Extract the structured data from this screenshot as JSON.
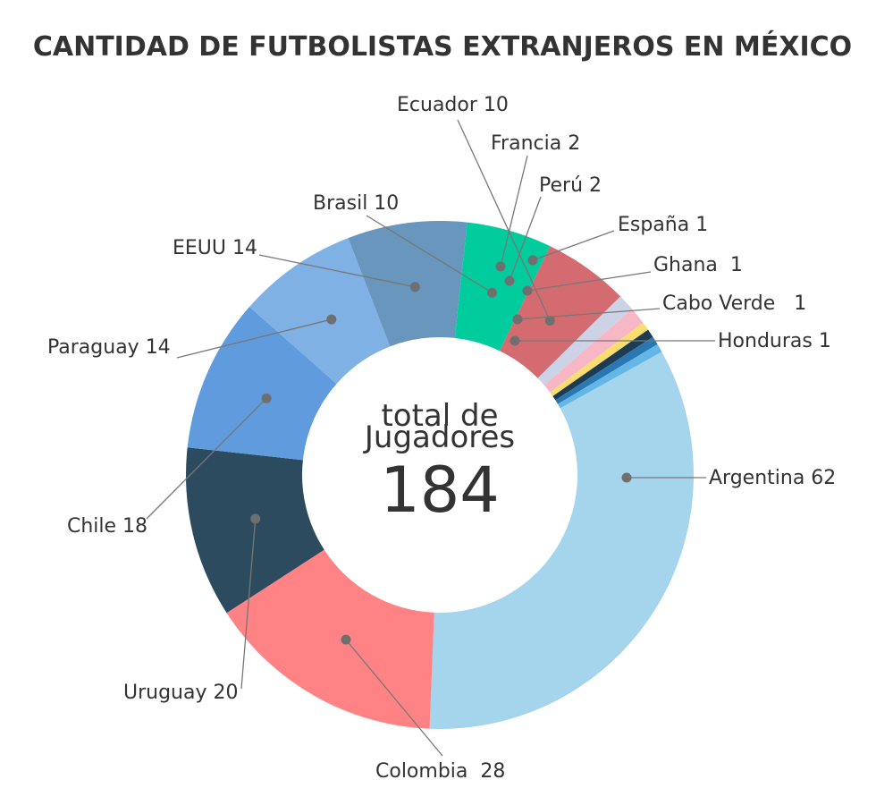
{
  "chart_data": {
    "type": "pie",
    "title": "CANTIDAD DE FUTBOLISTAS EXTRANJEROS EN MÉXICO",
    "center_label_line1": "total de",
    "center_label_line2": "Jugadores",
    "total": 184,
    "slices": [
      {
        "label": "Argentina 62",
        "value": 62,
        "color": "#a5d5ed"
      },
      {
        "label": "Colombia  28",
        "value": 28,
        "color": "#ff8384"
      },
      {
        "label": "Uruguay 20",
        "value": 20,
        "color": "#2c4b5e"
      },
      {
        "label": "Chile 18",
        "value": 18,
        "color": "#5f9bdd"
      },
      {
        "label": "Paraguay 14",
        "value": 14,
        "color": "#7fb1e5"
      },
      {
        "label": "EEUU 14",
        "value": 14,
        "color": "#6896bd"
      },
      {
        "label": "Brasil 10",
        "value": 10,
        "color": "#00cc9e"
      },
      {
        "label": "Ecuador 10",
        "value": 10,
        "color": "#d36b70"
      },
      {
        "label": "Francia 2",
        "value": 2,
        "color": "#cdd3e6"
      },
      {
        "label": "Perú 2",
        "value": 2,
        "color": "#f7b7c5"
      },
      {
        "label": "España 1",
        "value": 1,
        "color": "#fadd6f"
      },
      {
        "label": "Ghana  1",
        "value": 1,
        "color": "#1e3b55"
      },
      {
        "label": "Cabo Verde   1",
        "value": 1,
        "color": "#2a78b2"
      },
      {
        "label": "Honduras 1",
        "value": 1,
        "color": "#63b6e5"
      }
    ],
    "label_color": "#333333",
    "leader_color": "#777777"
  }
}
